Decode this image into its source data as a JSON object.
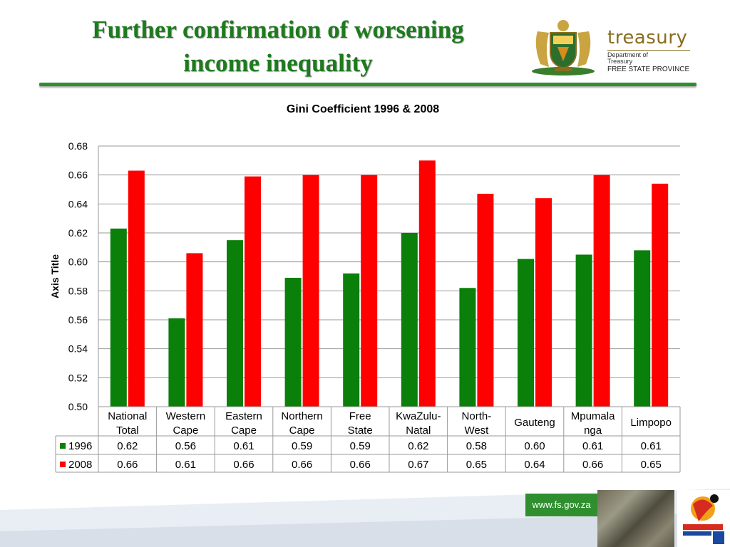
{
  "slide": {
    "title_line1": "Further confirmation of worsening",
    "title_line2": "income inequality",
    "logo_word": "treasury",
    "logo_dept_line1": "Department of",
    "logo_dept_line2": "Treasury",
    "logo_province": "FREE STATE PROVINCE",
    "footer_url": "www.fs.gov.za"
  },
  "colors": {
    "title_green": "#1e7a1e",
    "series_1996": "#0a7f0a",
    "series_2008": "#ff0000",
    "band_green": "#2f8f2f"
  },
  "chart_data": {
    "type": "bar",
    "title": "Gini Coefficient 1996 & 2008",
    "ylabel": "Axis Title",
    "xlabel": "",
    "ylim": [
      0.5,
      0.68
    ],
    "yticks": [
      "0.50",
      "0.52",
      "0.54",
      "0.56",
      "0.58",
      "0.60",
      "0.62",
      "0.64",
      "0.66",
      "0.68"
    ],
    "grid": true,
    "legend": "data-table-left",
    "categories": [
      [
        "National",
        "Total"
      ],
      [
        "Western",
        "Cape"
      ],
      [
        "Eastern",
        "Cape"
      ],
      [
        "Northern",
        "Cape"
      ],
      [
        "Free",
        "State"
      ],
      [
        "KwaZulu-",
        "Natal"
      ],
      [
        "North-",
        "West"
      ],
      [
        "Gauteng"
      ],
      [
        "Mpumala",
        "nga"
      ],
      [
        "Limpopo"
      ]
    ],
    "series": [
      {
        "name": "1996",
        "values": [
          0.623,
          0.561,
          0.615,
          0.589,
          0.592,
          0.62,
          0.582,
          0.602,
          0.605,
          0.608
        ],
        "labels": [
          "0.62",
          "0.56",
          "0.61",
          "0.59",
          "0.59",
          "0.62",
          "0.58",
          "0.60",
          "0.61",
          "0.61"
        ]
      },
      {
        "name": "2008",
        "values": [
          0.663,
          0.606,
          0.659,
          0.66,
          0.66,
          0.67,
          0.647,
          0.644,
          0.66,
          0.654
        ],
        "labels": [
          "0.66",
          "0.61",
          "0.66",
          "0.66",
          "0.66",
          "0.67",
          "0.65",
          "0.64",
          "0.66",
          "0.65"
        ]
      }
    ]
  }
}
